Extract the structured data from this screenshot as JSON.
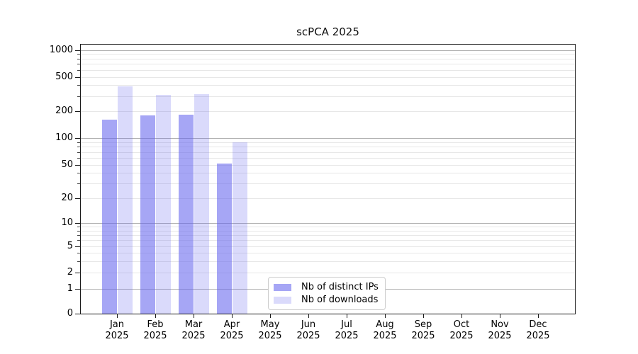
{
  "title": "scPCA 2025",
  "legend": {
    "items": [
      {
        "label": "Nb of distinct IPs",
        "color_key": "ips_bar"
      },
      {
        "label": "Nb of downloads",
        "color_key": "downloads_bar"
      }
    ]
  },
  "chart_data": {
    "type": "bar",
    "title": "scPCA 2025",
    "categories": [
      "Jan",
      "Feb",
      "Mar",
      "Apr",
      "May",
      "Jun",
      "Jul",
      "Aug",
      "Sep",
      "Oct",
      "Nov",
      "Dec"
    ],
    "category_year": "2025",
    "series": [
      {
        "name": "Nb of distinct IPs",
        "values": [
          160,
          178,
          182,
          52,
          null,
          null,
          null,
          null,
          null,
          null,
          null,
          null
        ]
      },
      {
        "name": "Nb of downloads",
        "values": [
          390,
          307,
          313,
          90,
          null,
          null,
          null,
          null,
          null,
          null,
          null,
          null
        ]
      }
    ],
    "xlabel": "",
    "ylabel": "",
    "yscale": "asinh-log (log-like axis including 0)",
    "ytick_values": [
      0,
      1,
      2,
      5,
      10,
      20,
      50,
      100,
      200,
      500,
      1000
    ],
    "ytick_labels": [
      "0",
      "1",
      "2",
      "5",
      "10",
      "20",
      "50",
      "100",
      "200",
      "500",
      "1000"
    ],
    "minor_grid_values": [
      3,
      4,
      6,
      7,
      8,
      9,
      30,
      40,
      60,
      70,
      80,
      90,
      300,
      400,
      600,
      700,
      800,
      900
    ],
    "ylim": [
      0,
      1300
    ],
    "grid": "horizontal, major (1,10,100,1000) darker + minor fainter, visible through translucent bars",
    "legend_position": "inside, lower center-left"
  },
  "colors": {
    "ips_bar": "rgba(102,102,238,0.58)",
    "downloads_bar": "rgba(102,102,238,0.24)",
    "major_grid": "#b0b0b0",
    "minor_grid": "#e7e7e7",
    "axis": "#1a1a1a",
    "text": "#000000",
    "legend_border": "#cccccc"
  }
}
